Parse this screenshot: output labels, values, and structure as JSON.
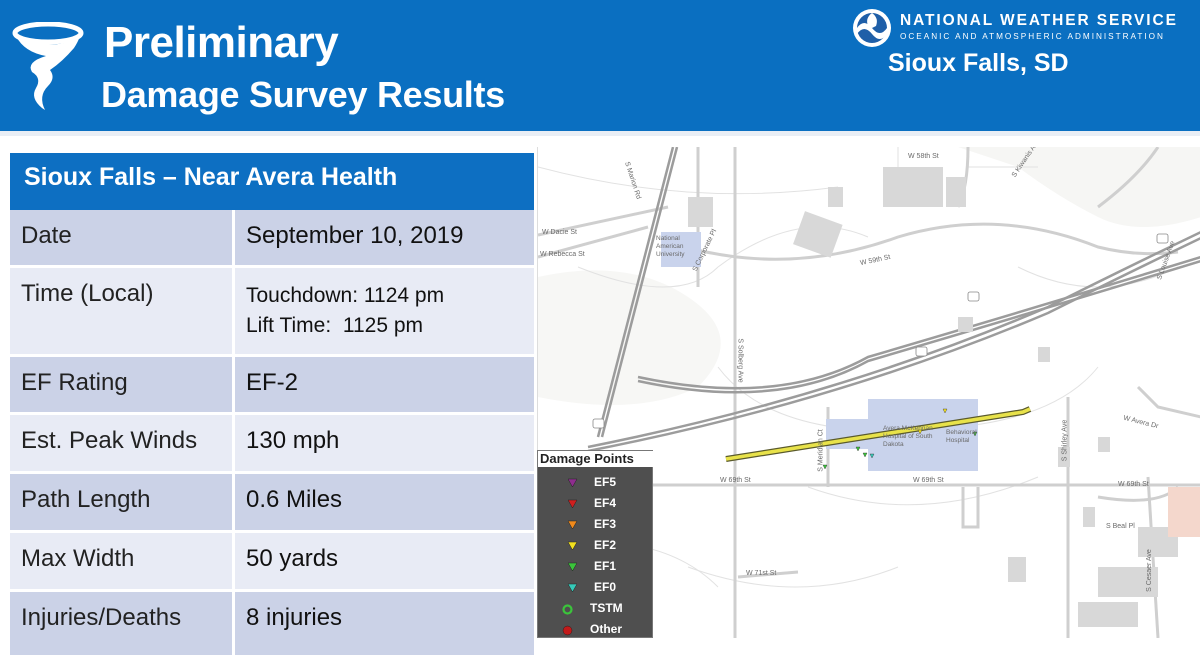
{
  "header": {
    "title_line1": "Preliminary",
    "title_line2": "Damage Survey Results",
    "agency": "NATIONAL WEATHER SERVICE",
    "agency_sub": "OCEANIC AND ATMOSPHERIC ADMINISTRATION",
    "office": "Sioux Falls, SD",
    "icons": [
      "tornado-icon",
      "noaa-logo"
    ]
  },
  "survey": {
    "title": "Sioux Falls – Near Avera Health",
    "rows": [
      {
        "label": "Date",
        "value": "September 10, 2019"
      },
      {
        "label": "Time (Local)",
        "value": "Touchdown: 1124 pm",
        "value2": "Lift Time:  1125 pm"
      },
      {
        "label": "EF Rating",
        "value": "EF-2"
      },
      {
        "label": "Est. Peak Winds",
        "value": "130 mph"
      },
      {
        "label": "Path Length",
        "value": "0.6 Miles"
      },
      {
        "label": "Max Width",
        "value": "50 yards"
      },
      {
        "label": "Injuries/Deaths",
        "value": "8 injuries"
      }
    ]
  },
  "map": {
    "streets": [
      "W 58th St",
      "W Dacie St",
      "W Rebecca St",
      "W 59th St",
      "W 69th St",
      "W 69th St",
      "W 69th St",
      "W 71st St",
      "W Avera Dr",
      "S Beal Pl",
      "S Marion Rd",
      "S Solberg Ave",
      "S Corporate Pl",
      "S Shirley Ave",
      "S Louise Ave",
      "S Cesaer Ave",
      "S Kiwanis Ave",
      "S Meridian Ct"
    ],
    "places": [
      "National American University",
      "Avera McKennan Hospital of South Dakota",
      "Behavioral Hospital"
    ],
    "highway_shields": [
      "29",
      "229",
      "29",
      "29",
      "29"
    ],
    "track_color": "#e8e24a",
    "building_color": "#c9d3ec"
  },
  "legend": {
    "title": "Damage Points",
    "items": [
      {
        "label": "EF5",
        "color": "#8e2d8e",
        "shape": "triangle"
      },
      {
        "label": "EF4",
        "color": "#d01f1f",
        "shape": "triangle"
      },
      {
        "label": "EF3",
        "color": "#f08a1c",
        "shape": "triangle"
      },
      {
        "label": "EF2",
        "color": "#f2e01f",
        "shape": "triangle"
      },
      {
        "label": "EF1",
        "color": "#3bc43b",
        "shape": "triangle"
      },
      {
        "label": "EF0",
        "color": "#36c9b8",
        "shape": "triangle"
      },
      {
        "label": "TSTM",
        "color": "#3bc43b",
        "shape": "circle"
      },
      {
        "label": "Other",
        "color": "#c21a1a",
        "shape": "circle"
      }
    ]
  }
}
